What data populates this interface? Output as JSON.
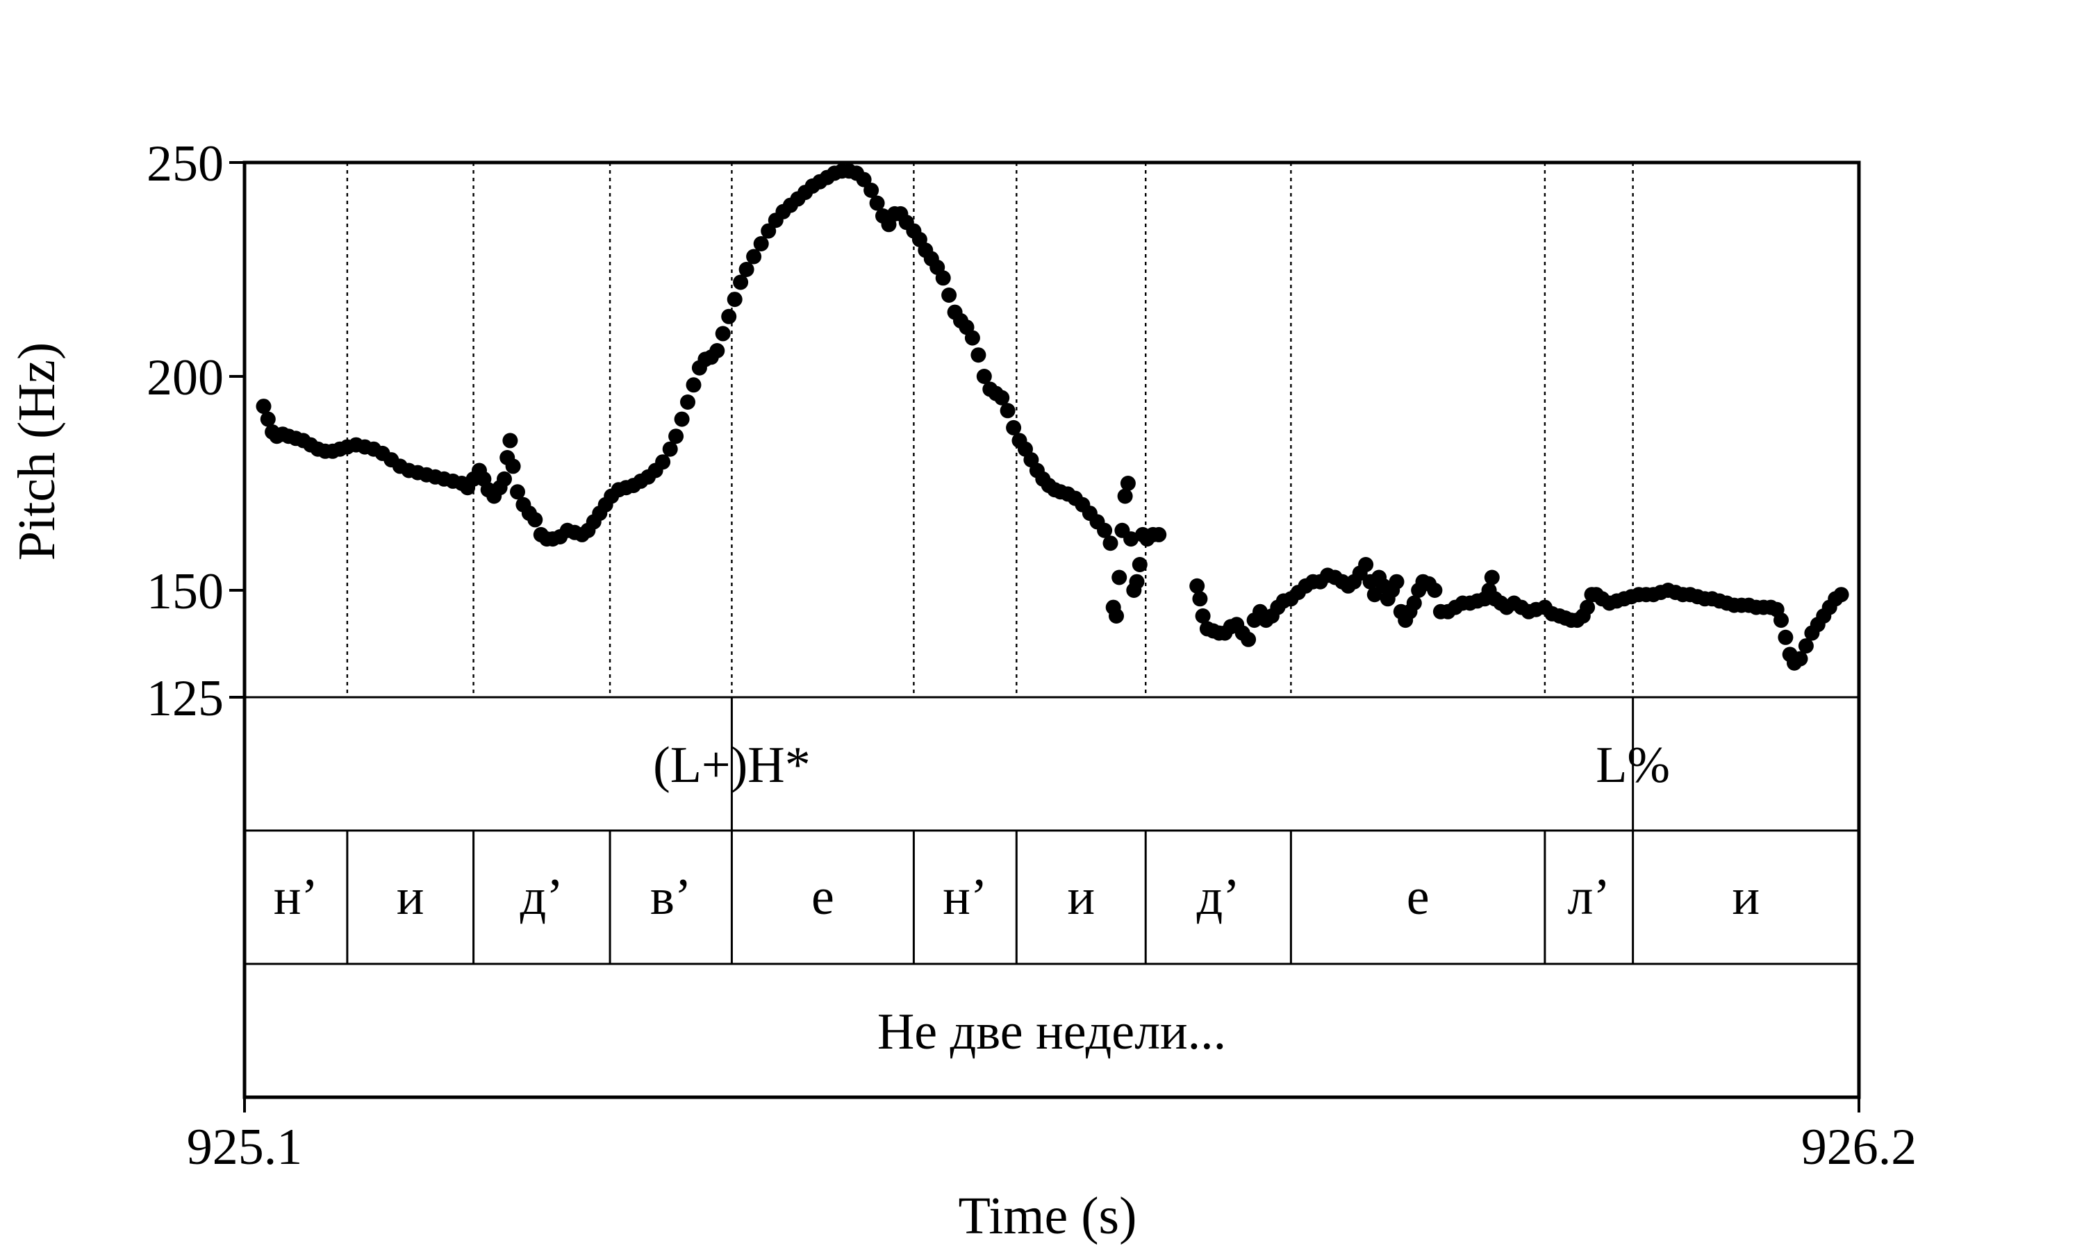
{
  "chart_data": {
    "type": "scatter",
    "title": "",
    "xlabel": "Time (s)",
    "ylabel": "Pitch (Hz)",
    "xlim": [
      925.1,
      926.2
    ],
    "ylim": [
      125,
      250
    ],
    "x_ticks": [
      "925.1",
      "926.2"
    ],
    "y_ticks": [
      {
        "value": 250,
        "label": "250"
      },
      {
        "value": 200,
        "label": "200"
      },
      {
        "value": 150,
        "label": "150"
      },
      {
        "value": 125,
        "label": "125"
      }
    ],
    "grid": false,
    "boundaries": [
      925.17,
      925.256,
      925.349,
      925.432,
      925.556,
      925.626,
      925.714,
      925.813,
      925.986,
      926.046
    ],
    "tones": [
      {
        "label": "(L+)H*",
        "time": 925.432
      },
      {
        "label": "L%",
        "time": 926.046
      }
    ],
    "segments": [
      {
        "label": "н’",
        "start": 925.1,
        "end": 925.17
      },
      {
        "label": "и",
        "start": 925.17,
        "end": 925.256
      },
      {
        "label": "д’",
        "start": 925.256,
        "end": 925.349
      },
      {
        "label": "в’",
        "start": 925.349,
        "end": 925.432
      },
      {
        "label": "е",
        "start": 925.432,
        "end": 925.556
      },
      {
        "label": "н’",
        "start": 925.556,
        "end": 925.626
      },
      {
        "label": "и",
        "start": 925.626,
        "end": 925.714
      },
      {
        "label": "д’",
        "start": 925.714,
        "end": 925.813
      },
      {
        "label": "е",
        "start": 925.813,
        "end": 925.986
      },
      {
        "label": "л’",
        "start": 925.986,
        "end": 926.046
      },
      {
        "label": "и",
        "start": 926.046,
        "end": 926.2
      }
    ],
    "words": [
      {
        "label": "Не две недели...",
        "start": 925.1,
        "end": 926.2
      }
    ],
    "series": [
      {
        "points": [
          [
            925.113,
            193
          ],
          [
            925.116,
            190
          ],
          [
            925.119,
            187
          ],
          [
            925.122,
            186
          ],
          [
            925.126,
            186.5
          ],
          [
            925.13,
            186
          ],
          [
            925.135,
            185.5
          ],
          [
            925.14,
            185
          ],
          [
            925.145,
            184
          ],
          [
            925.15,
            183
          ],
          [
            925.155,
            182.5
          ],
          [
            925.16,
            182.5
          ],
          [
            925.165,
            183
          ],
          [
            925.17,
            183.5
          ],
          [
            925.176,
            184
          ],
          [
            925.182,
            183.5
          ],
          [
            925.188,
            183
          ],
          [
            925.194,
            182
          ],
          [
            925.2,
            180.5
          ],
          [
            925.206,
            179
          ],
          [
            925.212,
            178
          ],
          [
            925.218,
            177.5
          ],
          [
            925.224,
            177
          ],
          [
            925.23,
            176.5
          ],
          [
            925.236,
            176
          ],
          [
            925.242,
            175.5
          ],
          [
            925.248,
            175
          ],
          [
            925.252,
            174
          ],
          [
            925.256,
            176
          ],
          [
            925.26,
            178
          ],
          [
            925.263,
            176
          ],
          [
            925.266,
            173.5
          ],
          [
            925.27,
            172
          ],
          [
            925.274,
            174
          ],
          [
            925.277,
            176
          ],
          [
            925.279,
            181
          ],
          [
            925.281,
            185
          ],
          [
            925.283,
            179
          ],
          [
            925.286,
            173
          ],
          [
            925.29,
            170
          ],
          [
            925.294,
            168
          ],
          [
            925.298,
            166.5
          ],
          [
            925.302,
            163
          ],
          [
            925.306,
            162
          ],
          [
            925.31,
            162
          ],
          [
            925.315,
            162.5
          ],
          [
            925.32,
            164
          ],
          [
            925.325,
            163.5
          ],
          [
            925.33,
            163
          ],
          [
            925.334,
            164
          ],
          [
            925.338,
            166
          ],
          [
            925.342,
            168
          ],
          [
            925.346,
            170
          ],
          [
            925.35,
            172
          ],
          [
            925.355,
            173.5
          ],
          [
            925.36,
            174
          ],
          [
            925.365,
            174.5
          ],
          [
            925.37,
            175.5
          ],
          [
            925.375,
            176.5
          ],
          [
            925.38,
            178
          ],
          [
            925.385,
            180
          ],
          [
            925.39,
            183
          ],
          [
            925.394,
            186
          ],
          [
            925.398,
            190
          ],
          [
            925.402,
            194
          ],
          [
            925.406,
            198
          ],
          [
            925.41,
            202
          ],
          [
            925.414,
            204
          ],
          [
            925.418,
            204.5
          ],
          [
            925.422,
            206
          ],
          [
            925.426,
            210
          ],
          [
            925.43,
            214
          ],
          [
            925.434,
            218
          ],
          [
            925.438,
            222
          ],
          [
            925.442,
            225
          ],
          [
            925.447,
            228
          ],
          [
            925.452,
            231
          ],
          [
            925.457,
            234
          ],
          [
            925.462,
            236.5
          ],
          [
            925.467,
            238.5
          ],
          [
            925.472,
            240
          ],
          [
            925.477,
            241.5
          ],
          [
            925.482,
            243
          ],
          [
            925.487,
            244.5
          ],
          [
            925.492,
            245.5
          ],
          [
            925.497,
            246.5
          ],
          [
            925.502,
            247.5
          ],
          [
            925.507,
            248
          ],
          [
            925.512,
            248
          ],
          [
            925.517,
            247.5
          ],
          [
            925.522,
            246
          ],
          [
            925.527,
            243.5
          ],
          [
            925.531,
            240.5
          ],
          [
            925.535,
            237.5
          ],
          [
            925.539,
            235.5
          ],
          [
            925.543,
            238
          ],
          [
            925.547,
            238
          ],
          [
            925.551,
            236
          ],
          [
            925.556,
            234
          ],
          [
            925.56,
            232
          ],
          [
            925.564,
            229.5
          ],
          [
            925.568,
            227.5
          ],
          [
            925.572,
            225.5
          ],
          [
            925.576,
            223
          ],
          [
            925.58,
            219
          ],
          [
            925.584,
            215
          ],
          [
            925.588,
            213
          ],
          [
            925.592,
            211.5
          ],
          [
            925.596,
            209
          ],
          [
            925.6,
            205
          ],
          [
            925.604,
            200
          ],
          [
            925.608,
            197
          ],
          [
            925.612,
            196
          ],
          [
            925.616,
            195
          ],
          [
            925.62,
            192
          ],
          [
            925.624,
            188
          ],
          [
            925.628,
            185
          ],
          [
            925.632,
            183
          ],
          [
            925.636,
            180.5
          ],
          [
            925.64,
            178
          ],
          [
            925.644,
            176
          ],
          [
            925.648,
            174.5
          ],
          [
            925.652,
            173.5
          ],
          [
            925.656,
            173
          ],
          [
            925.661,
            172.5
          ],
          [
            925.666,
            171.5
          ],
          [
            925.671,
            170
          ],
          [
            925.676,
            168
          ],
          [
            925.681,
            166
          ],
          [
            925.686,
            164
          ],
          [
            925.69,
            161
          ],
          [
            925.692,
            146
          ],
          [
            925.694,
            144
          ],
          [
            925.696,
            153
          ],
          [
            925.698,
            164
          ],
          [
            925.7,
            172
          ],
          [
            925.702,
            175
          ],
          [
            925.704,
            162
          ],
          [
            925.706,
            150
          ],
          [
            925.708,
            152
          ],
          [
            925.71,
            156
          ],
          [
            925.712,
            163
          ],
          [
            925.715,
            162
          ],
          [
            925.719,
            163
          ],
          [
            925.723,
            163
          ],
          [
            925.749,
            151
          ],
          [
            925.751,
            148
          ],
          [
            925.753,
            144
          ],
          [
            925.756,
            141
          ],
          [
            925.76,
            140.5
          ],
          [
            925.764,
            140
          ],
          [
            925.768,
            140
          ],
          [
            925.772,
            141.5
          ],
          [
            925.776,
            142
          ],
          [
            925.78,
            140
          ],
          [
            925.784,
            138.5
          ],
          [
            925.788,
            143
          ],
          [
            925.792,
            145
          ],
          [
            925.796,
            143
          ],
          [
            925.8,
            144
          ],
          [
            925.804,
            146
          ],
          [
            925.808,
            147.5
          ],
          [
            925.813,
            148
          ],
          [
            925.818,
            149.5
          ],
          [
            925.823,
            151
          ],
          [
            925.828,
            152
          ],
          [
            925.833,
            152
          ],
          [
            925.838,
            153.5
          ],
          [
            925.843,
            153
          ],
          [
            925.848,
            152
          ],
          [
            925.852,
            151
          ],
          [
            925.856,
            152
          ],
          [
            925.86,
            154
          ],
          [
            925.864,
            156
          ],
          [
            925.867,
            152
          ],
          [
            925.87,
            149
          ],
          [
            925.873,
            153
          ],
          [
            925.876,
            151
          ],
          [
            925.879,
            148
          ],
          [
            925.882,
            150
          ],
          [
            925.885,
            152
          ],
          [
            925.888,
            145
          ],
          [
            925.891,
            143
          ],
          [
            925.894,
            145
          ],
          [
            925.897,
            147
          ],
          [
            925.9,
            150
          ],
          [
            925.903,
            152
          ],
          [
            925.907,
            151.5
          ],
          [
            925.911,
            150
          ],
          [
            925.915,
            145
          ],
          [
            925.92,
            145
          ],
          [
            925.925,
            146
          ],
          [
            925.93,
            147
          ],
          [
            925.935,
            147
          ],
          [
            925.94,
            147.5
          ],
          [
            925.945,
            148
          ],
          [
            925.948,
            150
          ],
          [
            925.95,
            153
          ],
          [
            925.952,
            148
          ],
          [
            925.956,
            147
          ],
          [
            925.96,
            146
          ],
          [
            925.965,
            147
          ],
          [
            925.97,
            146
          ],
          [
            925.975,
            145
          ],
          [
            925.98,
            145.5
          ],
          [
            925.986,
            146
          ],
          [
            925.991,
            144.5
          ],
          [
            925.996,
            144
          ],
          [
            926.0,
            143.5
          ],
          [
            926.004,
            143
          ],
          [
            926.008,
            143
          ],
          [
            926.012,
            144
          ],
          [
            926.015,
            146
          ],
          [
            926.018,
            149
          ],
          [
            926.021,
            149
          ],
          [
            926.025,
            148
          ],
          [
            926.03,
            147
          ],
          [
            926.035,
            147.5
          ],
          [
            926.04,
            148
          ],
          [
            926.045,
            148.5
          ],
          [
            926.05,
            149
          ],
          [
            926.055,
            149
          ],
          [
            926.06,
            149
          ],
          [
            926.065,
            149.5
          ],
          [
            926.07,
            150
          ],
          [
            926.075,
            149.5
          ],
          [
            926.08,
            149
          ],
          [
            926.085,
            149
          ],
          [
            926.09,
            148.5
          ],
          [
            926.095,
            148
          ],
          [
            926.1,
            148
          ],
          [
            926.105,
            147.5
          ],
          [
            926.11,
            147
          ],
          [
            926.115,
            146.5
          ],
          [
            926.12,
            146.5
          ],
          [
            926.125,
            146.5
          ],
          [
            926.13,
            146
          ],
          [
            926.135,
            146
          ],
          [
            926.14,
            146
          ],
          [
            926.144,
            145.5
          ],
          [
            926.147,
            143
          ],
          [
            926.15,
            139
          ],
          [
            926.153,
            135
          ],
          [
            926.156,
            133
          ],
          [
            926.16,
            134
          ],
          [
            926.164,
            137
          ],
          [
            926.168,
            140
          ],
          [
            926.172,
            142
          ],
          [
            926.176,
            144
          ],
          [
            926.18,
            146
          ],
          [
            926.184,
            148
          ],
          [
            926.188,
            149
          ]
        ]
      }
    ]
  }
}
